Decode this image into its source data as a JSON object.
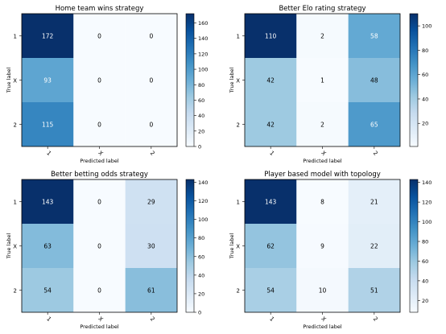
{
  "chart_data": [
    {
      "type": "heatmap",
      "title": "Home team wins strategy",
      "xlabel": "Predicted label",
      "ylabel": "True label",
      "x_categories": [
        "1",
        "X",
        "2"
      ],
      "y_categories": [
        "1",
        "X",
        "2"
      ],
      "values": [
        [
          172,
          0,
          0
        ],
        [
          93,
          0,
          0
        ],
        [
          115,
          0,
          0
        ]
      ],
      "colorbar_ticks": [
        0,
        20,
        40,
        60,
        80,
        100,
        120,
        140,
        160
      ],
      "colorscale": "Blues"
    },
    {
      "type": "heatmap",
      "title": "Better Elo rating strategy",
      "xlabel": "Predicted label",
      "ylabel": "True label",
      "x_categories": [
        "1",
        "X",
        "2"
      ],
      "y_categories": [
        "1",
        "X",
        "2"
      ],
      "values": [
        [
          110,
          2,
          58
        ],
        [
          42,
          1,
          48
        ],
        [
          42,
          2,
          65
        ]
      ],
      "colorbar_ticks": [
        20,
        40,
        60,
        80,
        100
      ],
      "colorscale": "Blues"
    },
    {
      "type": "heatmap",
      "title": "Better betting odds strategy",
      "xlabel": "Predicted label",
      "ylabel": "True label",
      "x_categories": [
        "1",
        "X",
        "2"
      ],
      "y_categories": [
        "1",
        "X",
        "2"
      ],
      "values": [
        [
          143,
          0,
          29
        ],
        [
          63,
          0,
          30
        ],
        [
          54,
          0,
          61
        ]
      ],
      "colorbar_ticks": [
        0,
        20,
        40,
        60,
        80,
        100,
        120,
        140
      ],
      "colorscale": "Blues"
    },
    {
      "type": "heatmap",
      "title": "Player based model with topology",
      "xlabel": "Predicted label",
      "ylabel": "True label",
      "x_categories": [
        "1",
        "X",
        "2"
      ],
      "y_categories": [
        "1",
        "X",
        "2"
      ],
      "values": [
        [
          143,
          8,
          21
        ],
        [
          62,
          9,
          22
        ],
        [
          54,
          10,
          51
        ]
      ],
      "colorbar_ticks": [
        20,
        40,
        60,
        80,
        100,
        120,
        140
      ],
      "colorscale": "Blues"
    }
  ]
}
